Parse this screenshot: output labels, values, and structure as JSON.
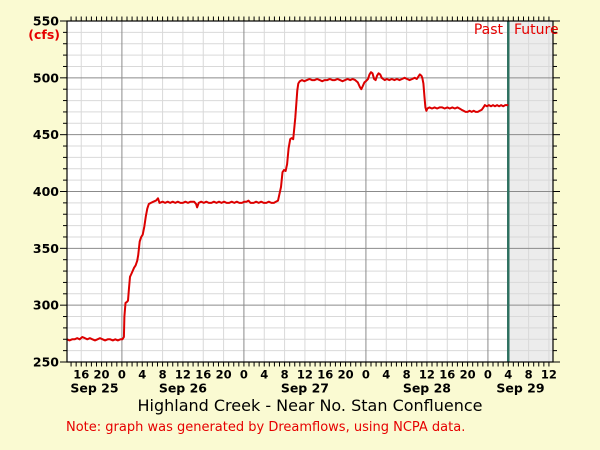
{
  "page": {
    "title": "Highland Creek - Near No. Stan Confluence",
    "note": "Note: graph was generated by Dreamflows, using NCPA data."
  },
  "legend": {
    "past": "Past",
    "future": "Future"
  },
  "y_axis": {
    "unit": "(cfs)",
    "min": 250,
    "max": 550,
    "major_step": 50,
    "minor_step": 10,
    "major_labels": [
      "250",
      "300",
      "350",
      "400",
      "450",
      "500",
      "550"
    ]
  },
  "x_axis": {
    "start_hour": 13.2,
    "end_hour": 108.8,
    "minor_step_hours": 4,
    "hour_tick_step": 1,
    "midnight_hours": [
      24,
      48,
      72,
      96
    ],
    "tick_labels": [
      {
        "hour": 16,
        "label": "16"
      },
      {
        "hour": 20,
        "label": "20"
      },
      {
        "hour": 24,
        "label": "0"
      },
      {
        "hour": 28,
        "label": "4"
      },
      {
        "hour": 32,
        "label": "8"
      },
      {
        "hour": 36,
        "label": "12"
      },
      {
        "hour": 40,
        "label": "16"
      },
      {
        "hour": 44,
        "label": "20"
      },
      {
        "hour": 48,
        "label": "0"
      },
      {
        "hour": 52,
        "label": "4"
      },
      {
        "hour": 56,
        "label": "8"
      },
      {
        "hour": 60,
        "label": "12"
      },
      {
        "hour": 64,
        "label": "16"
      },
      {
        "hour": 68,
        "label": "20"
      },
      {
        "hour": 72,
        "label": "0"
      },
      {
        "hour": 76,
        "label": "4"
      },
      {
        "hour": 80,
        "label": "8"
      },
      {
        "hour": 84,
        "label": "12"
      },
      {
        "hour": 88,
        "label": "16"
      },
      {
        "hour": 92,
        "label": "20"
      },
      {
        "hour": 96,
        "label": "0"
      },
      {
        "hour": 100,
        "label": "4"
      },
      {
        "hour": 104,
        "label": "8"
      },
      {
        "hour": 108,
        "label": "12"
      }
    ],
    "day_labels": [
      {
        "label": "Sep 25",
        "center_hour": 18.6
      },
      {
        "label": "Sep 26",
        "center_hour": 36
      },
      {
        "label": "Sep 27",
        "center_hour": 60
      },
      {
        "label": "Sep 28",
        "center_hour": 84
      },
      {
        "label": "Sep 29",
        "center_hour": 102.4
      }
    ]
  },
  "chart_data": {
    "type": "line",
    "title": "Highland Creek - Near No. Stan Confluence",
    "ylabel": "(cfs)",
    "ylim": [
      250,
      550
    ],
    "x_unit": "hours since Sep 25 00:00",
    "now_hour": 100,
    "grid": true,
    "legend_position": "top-right (Past | Future)",
    "series": [
      {
        "name": "flow-cfs",
        "color": "#dc0000",
        "points": [
          [
            13.2,
            270
          ],
          [
            13.7,
            269
          ],
          [
            14.2,
            270
          ],
          [
            14.7,
            270
          ],
          [
            15.2,
            271
          ],
          [
            15.7,
            270
          ],
          [
            16.2,
            272
          ],
          [
            16.7,
            271
          ],
          [
            17.2,
            270
          ],
          [
            17.7,
            271
          ],
          [
            18.2,
            270
          ],
          [
            18.7,
            269
          ],
          [
            19.2,
            270
          ],
          [
            19.7,
            271
          ],
          [
            20.2,
            270
          ],
          [
            20.7,
            269
          ],
          [
            21.2,
            270
          ],
          [
            21.7,
            270
          ],
          [
            22.2,
            269
          ],
          [
            22.7,
            270
          ],
          [
            23.2,
            269
          ],
          [
            23.7,
            270
          ],
          [
            24.1,
            270
          ],
          [
            24.4,
            272
          ],
          [
            24.5,
            290
          ],
          [
            24.7,
            302
          ],
          [
            25.0,
            303
          ],
          [
            25.2,
            304
          ],
          [
            25.4,
            315
          ],
          [
            25.6,
            325
          ],
          [
            25.8,
            327
          ],
          [
            26.1,
            330
          ],
          [
            26.4,
            333
          ],
          [
            26.7,
            335
          ],
          [
            27.0,
            339
          ],
          [
            27.2,
            344
          ],
          [
            27.5,
            356
          ],
          [
            27.8,
            360
          ],
          [
            28.1,
            362
          ],
          [
            28.4,
            369
          ],
          [
            28.7,
            378
          ],
          [
            29.0,
            385
          ],
          [
            29.3,
            389
          ],
          [
            29.7,
            390
          ],
          [
            30.2,
            391
          ],
          [
            30.7,
            392
          ],
          [
            31.1,
            394
          ],
          [
            31.4,
            390
          ],
          [
            32,
            391
          ],
          [
            32.5,
            390
          ],
          [
            33,
            391
          ],
          [
            33.5,
            390
          ],
          [
            34,
            391
          ],
          [
            34.5,
            390
          ],
          [
            35,
            391
          ],
          [
            35.5,
            390
          ],
          [
            36,
            390
          ],
          [
            36.5,
            391
          ],
          [
            37,
            390
          ],
          [
            37.5,
            391
          ],
          [
            38.2,
            391
          ],
          [
            38.6,
            389
          ],
          [
            38.8,
            386
          ],
          [
            39.1,
            390
          ],
          [
            39.6,
            391
          ],
          [
            40.1,
            390
          ],
          [
            40.6,
            391
          ],
          [
            41.1,
            390
          ],
          [
            41.6,
            390
          ],
          [
            42.1,
            391
          ],
          [
            42.6,
            390
          ],
          [
            43.1,
            391
          ],
          [
            43.6,
            390
          ],
          [
            44.1,
            391
          ],
          [
            44.6,
            390
          ],
          [
            45.1,
            390
          ],
          [
            45.6,
            391
          ],
          [
            46.1,
            390
          ],
          [
            46.6,
            391
          ],
          [
            47.1,
            390
          ],
          [
            47.6,
            390
          ],
          [
            48.1,
            391
          ],
          [
            48.5,
            391
          ],
          [
            48.9,
            392
          ],
          [
            49.3,
            390
          ],
          [
            49.9,
            390
          ],
          [
            50.4,
            391
          ],
          [
            50.9,
            390
          ],
          [
            51.4,
            391
          ],
          [
            51.9,
            390
          ],
          [
            52.4,
            390
          ],
          [
            52.9,
            391
          ],
          [
            53.4,
            390
          ],
          [
            53.9,
            390
          ],
          [
            54.3,
            391
          ],
          [
            54.7,
            392
          ],
          [
            55.0,
            398
          ],
          [
            55.3,
            404
          ],
          [
            55.6,
            417
          ],
          [
            55.9,
            419
          ],
          [
            56.2,
            418
          ],
          [
            56.5,
            424
          ],
          [
            56.8,
            438
          ],
          [
            57.1,
            446
          ],
          [
            57.4,
            447
          ],
          [
            57.7,
            446
          ],
          [
            57.9,
            455
          ],
          [
            58.1,
            465
          ],
          [
            58.3,
            477
          ],
          [
            58.5,
            489
          ],
          [
            58.7,
            495
          ],
          [
            59.0,
            497
          ],
          [
            59.4,
            498
          ],
          [
            59.9,
            497
          ],
          [
            60.4,
            498
          ],
          [
            60.9,
            499
          ],
          [
            61.4,
            498
          ],
          [
            61.9,
            498
          ],
          [
            62.4,
            499
          ],
          [
            62.9,
            498
          ],
          [
            63.4,
            497
          ],
          [
            63.9,
            498
          ],
          [
            64.4,
            498
          ],
          [
            64.9,
            499
          ],
          [
            65.4,
            498
          ],
          [
            65.9,
            498
          ],
          [
            66.4,
            499
          ],
          [
            66.9,
            498
          ],
          [
            67.4,
            497
          ],
          [
            67.9,
            498
          ],
          [
            68.4,
            499
          ],
          [
            68.9,
            498
          ],
          [
            69.4,
            499
          ],
          [
            69.9,
            498
          ],
          [
            70.4,
            496
          ],
          [
            70.8,
            492
          ],
          [
            71.1,
            490
          ],
          [
            71.4,
            493
          ],
          [
            71.7,
            496
          ],
          [
            72.0,
            497
          ],
          [
            72.4,
            499
          ],
          [
            72.7,
            503
          ],
          [
            73.0,
            505
          ],
          [
            73.3,
            504
          ],
          [
            73.6,
            499
          ],
          [
            73.9,
            498
          ],
          [
            74.2,
            502
          ],
          [
            74.5,
            504
          ],
          [
            74.8,
            503
          ],
          [
            75.1,
            500
          ],
          [
            75.4,
            499
          ],
          [
            75.7,
            498
          ],
          [
            76.1,
            499
          ],
          [
            76.6,
            498
          ],
          [
            77.1,
            499
          ],
          [
            77.6,
            498
          ],
          [
            78.1,
            499
          ],
          [
            78.6,
            498
          ],
          [
            79.1,
            499
          ],
          [
            79.6,
            500
          ],
          [
            80.1,
            499
          ],
          [
            80.6,
            498
          ],
          [
            81.1,
            499
          ],
          [
            81.6,
            500
          ],
          [
            82.0,
            499
          ],
          [
            82.3,
            501
          ],
          [
            82.6,
            503
          ],
          [
            82.9,
            502
          ],
          [
            83.1,
            500
          ],
          [
            83.3,
            495
          ],
          [
            83.5,
            484
          ],
          [
            83.7,
            474
          ],
          [
            83.9,
            471
          ],
          [
            84.1,
            473
          ],
          [
            84.5,
            474
          ],
          [
            85.0,
            473
          ],
          [
            85.5,
            474
          ],
          [
            86.0,
            473
          ],
          [
            86.5,
            474
          ],
          [
            87.0,
            474
          ],
          [
            87.5,
            473
          ],
          [
            88.0,
            474
          ],
          [
            88.5,
            473
          ],
          [
            89.0,
            474
          ],
          [
            89.5,
            473
          ],
          [
            90.0,
            474
          ],
          [
            90.4,
            473
          ],
          [
            90.8,
            472
          ],
          [
            91.2,
            471
          ],
          [
            91.6,
            470
          ],
          [
            92.0,
            470
          ],
          [
            92.4,
            471
          ],
          [
            92.8,
            470
          ],
          [
            93.2,
            471
          ],
          [
            93.6,
            470
          ],
          [
            94.0,
            470
          ],
          [
            94.4,
            471
          ],
          [
            94.8,
            472
          ],
          [
            95.1,
            474
          ],
          [
            95.4,
            476
          ],
          [
            95.8,
            475
          ],
          [
            96.2,
            476
          ],
          [
            96.6,
            475
          ],
          [
            97.0,
            476
          ],
          [
            97.4,
            475
          ],
          [
            97.8,
            476
          ],
          [
            98.2,
            475
          ],
          [
            98.6,
            476
          ],
          [
            99.0,
            475
          ],
          [
            99.4,
            476
          ],
          [
            100.0,
            476
          ]
        ]
      }
    ]
  },
  "colors": {
    "page_bg": "#fafad2",
    "plot_bg": "#ffffff",
    "future_bg": "#ececec",
    "grid_minor": "#d9d9d9",
    "grid_major": "#8b8b8b",
    "axis": "#000000",
    "flow_line": "#dc0000",
    "accent_red": "#e60000",
    "now_line": "#2e7060"
  }
}
